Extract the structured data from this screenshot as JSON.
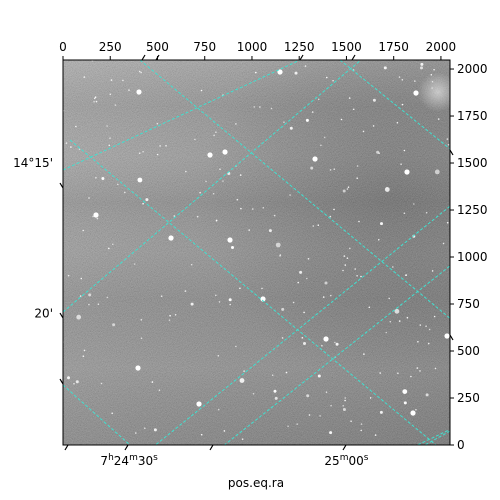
{
  "chart_data": {
    "type": "image",
    "title": "",
    "xlabel": "pos.eq.ra",
    "ylabel": "",
    "pixel_axes": {
      "x": {
        "range": [
          0,
          2048
        ],
        "ticks": [
          0,
          250,
          500,
          750,
          1000,
          1250,
          1500,
          1750,
          2000
        ]
      },
      "y": {
        "range": [
          0,
          2048
        ],
        "ticks": [
          0,
          250,
          500,
          750,
          1000,
          1250,
          1500,
          1750,
          2000
        ]
      }
    },
    "world_axes": {
      "ra_tick_labels": [
        {
          "h": "7",
          "m": "24",
          "s": "30",
          "sup": "s",
          "pix_x": 350
        },
        {
          "h": "",
          "m": "25",
          "s": "00",
          "sup": "s",
          "pix_x": 1500
        }
      ],
      "dec_tick_labels": [
        {
          "text": "14°15'",
          "pix_y": 1500
        },
        {
          "text": "20'",
          "pix_y": 700
        }
      ],
      "grid_color": "#40e0d0",
      "grid_style": "dashed"
    },
    "image_colormap": "gray"
  }
}
